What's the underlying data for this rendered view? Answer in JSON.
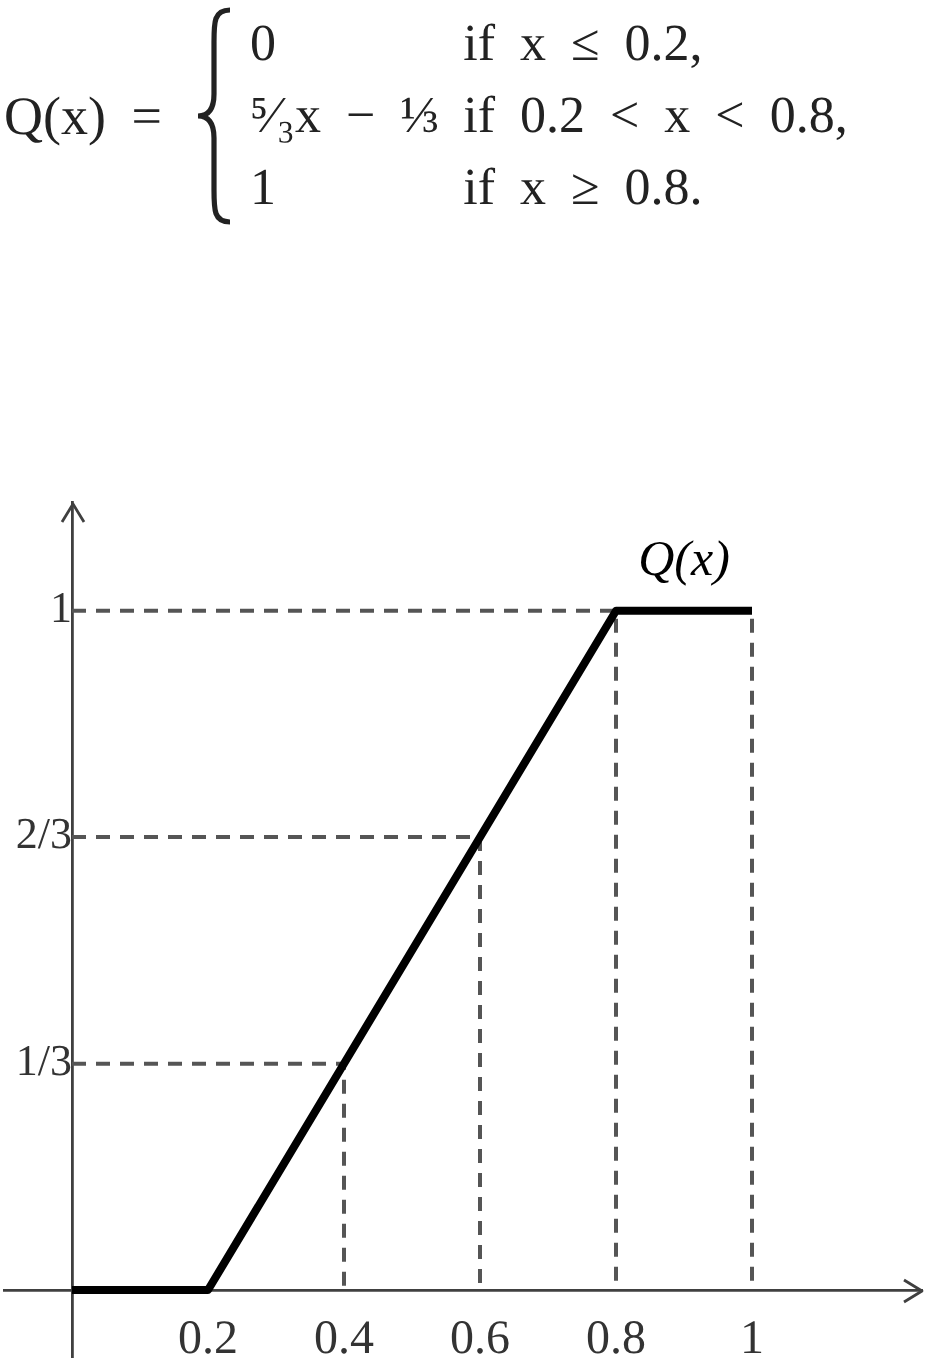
{
  "chart_data": {
    "type": "line",
    "annotations": [
      "Q(x) =",
      "0",
      "if x ≤ 0.2,",
      "⁵⁄₃x − ⅓",
      "if 0.2 < x < 0.8,",
      "1",
      "if x ≥ 0.8."
    ],
    "xlim": [
      -0.1,
      1.25
    ],
    "ylim": [
      -0.1,
      1.16
    ],
    "xticks": [
      0.2,
      0.4,
      0.6,
      0.8,
      1
    ],
    "yticks": [
      {
        "value": 0.333,
        "label": "1/3"
      },
      {
        "value": 0.667,
        "label": "2/3"
      },
      1
    ],
    "grid": false,
    "legend": false,
    "series": [
      {
        "name": "Q(x)",
        "color": "#000000",
        "x": [
          0,
          0.2,
          0.8,
          1
        ],
        "values": [
          0,
          0,
          1,
          1
        ]
      },
      {
        "color": "#555555",
        "line_style": "dashed",
        "x": [
          0,
          0.4,
          0.4
        ],
        "values": [
          0.333,
          0.333,
          0
        ]
      },
      {
        "color": "#555555",
        "line_style": "dashed",
        "x": [
          0,
          0.6,
          0.6
        ],
        "values": [
          0.667,
          0.667,
          0
        ]
      },
      {
        "color": "#555555",
        "line_style": "dashed",
        "x": [
          0,
          0.8,
          0.8
        ],
        "values": [
          1,
          1,
          0
        ]
      },
      {
        "color": "#555555",
        "line_style": "dashed",
        "x": [
          0.8,
          1,
          1
        ],
        "values": [
          1,
          1,
          0
        ]
      }
    ]
  }
}
